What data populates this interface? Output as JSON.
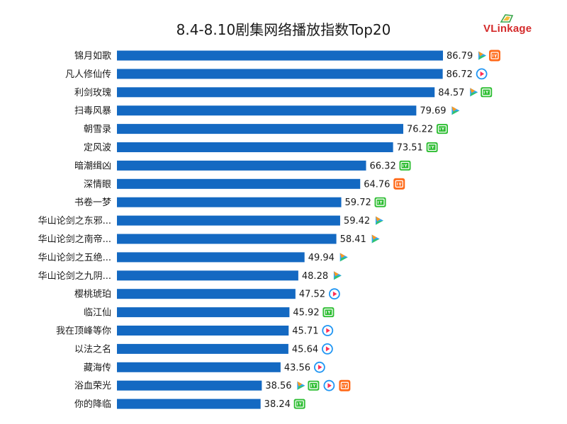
{
  "logo": {
    "text": "VLinkage"
  },
  "colors": {
    "bar": "#1469c2",
    "tencent_blue": "#2ea3ff",
    "tencent_green": "#33c46a",
    "tencent_orange": "#ff9a1f",
    "iqiyi": "#2fbe34",
    "youku_red": "#ff2e55",
    "youku_blue": "#2196f3",
    "mango": "#ff6a1a"
  },
  "chart_data": {
    "type": "bar",
    "orientation": "horizontal",
    "title": "8.4-8.10剧集网络播放指数Top20",
    "categories": [
      "锦月如歌",
      "凡人修仙传",
      "利剑玫瑰",
      "扫毒风暴",
      "朝雪录",
      "定风波",
      "暗潮缉凶",
      "深情眼",
      "书卷一梦",
      "华山论剑之东邪...",
      "华山论剑之南帝...",
      "华山论剑之五绝...",
      "华山论剑之九阴...",
      "樱桃琥珀",
      "临江仙",
      "我在顶峰等你",
      "以法之名",
      "藏海传",
      "浴血荣光",
      "你的降临"
    ],
    "values": [
      86.79,
      86.72,
      84.57,
      79.69,
      76.22,
      73.51,
      66.32,
      64.76,
      59.72,
      59.42,
      58.41,
      49.94,
      48.28,
      47.52,
      45.92,
      45.71,
      45.64,
      43.56,
      38.56,
      38.24
    ],
    "platforms": [
      [
        "tencent",
        "mango"
      ],
      [
        "youku"
      ],
      [
        "tencent",
        "iqiyi"
      ],
      [
        "tencent"
      ],
      [
        "iqiyi"
      ],
      [
        "iqiyi"
      ],
      [
        "iqiyi"
      ],
      [
        "mango"
      ],
      [
        "iqiyi"
      ],
      [
        "tencent"
      ],
      [
        "tencent"
      ],
      [
        "tencent"
      ],
      [
        "tencent"
      ],
      [
        "youku"
      ],
      [
        "iqiyi"
      ],
      [
        "youku"
      ],
      [
        "youku"
      ],
      [
        "youku"
      ],
      [
        "tencent",
        "iqiyi",
        "youku",
        "mango"
      ],
      [
        "iqiyi"
      ]
    ],
    "grid": false,
    "legend": "none"
  }
}
